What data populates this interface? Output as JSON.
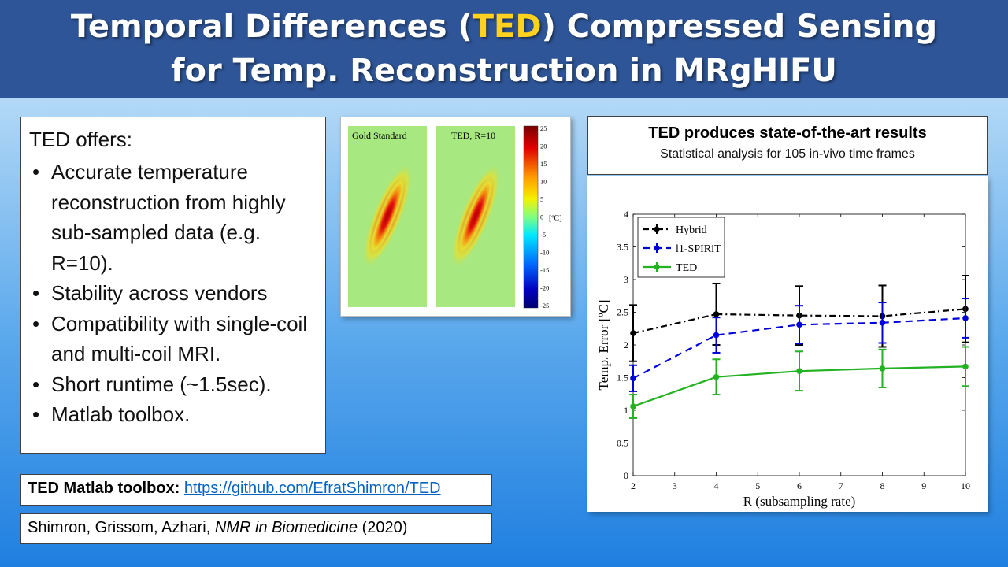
{
  "title": {
    "line1_pre": "Temporal Differences (",
    "line1_hl": "TED",
    "line1_post": ") Compressed Sensing",
    "line2": "for Temp. Reconstruction in MRgHIFU",
    "highlight_color": "#ffd21f",
    "bar_color": "#2e5597"
  },
  "offers": {
    "intro": "TED offers:",
    "items": [
      "Accurate temperature reconstruction from highly sub-sampled data (e.g. R=10).",
      "Stability across vendors",
      "Compatibility with single-coil and multi-coil MRI.",
      "Short runtime (~1.5sec).",
      "Matlab toolbox."
    ]
  },
  "maps": {
    "left_label": "Gold Standard",
    "right_label": "TED, R=10",
    "unit": "[ºC]",
    "colorbar_ticks": [
      "25",
      "20",
      "15",
      "10",
      "5",
      "0",
      "-5",
      "-10",
      "-15",
      "-20",
      "-25"
    ]
  },
  "results": {
    "heading": "TED produces state-of-the-art results",
    "subheading": "Statistical analysis for 105 in-vivo time frames"
  },
  "chart_data": {
    "type": "line",
    "xlabel": "R (subsampling rate)",
    "ylabel": "Temp. Error [ºC]",
    "xlim": [
      2,
      10
    ],
    "ylim": [
      0,
      4
    ],
    "xticks": [
      2,
      3,
      4,
      5,
      6,
      7,
      8,
      9,
      10
    ],
    "yticks": [
      0,
      0.5,
      1,
      1.5,
      2,
      2.5,
      3,
      3.5,
      4
    ],
    "x": [
      2,
      4,
      6,
      8,
      10
    ],
    "legend_position": "top-left",
    "series": [
      {
        "name": "Hybrid",
        "values": [
          2.18,
          2.47,
          2.45,
          2.44,
          2.55
        ],
        "err": [
          0.43,
          0.47,
          0.45,
          0.47,
          0.51
        ],
        "color": "#000000",
        "dash": "8,4,2,4"
      },
      {
        "name": "l1-SPIRiT",
        "values": [
          1.49,
          2.15,
          2.31,
          2.34,
          2.41
        ],
        "err": [
          0.2,
          0.27,
          0.29,
          0.31,
          0.3
        ],
        "color": "#0000dd",
        "dash": "9,6"
      },
      {
        "name": "TED",
        "values": [
          1.06,
          1.51,
          1.6,
          1.64,
          1.67
        ],
        "err": [
          0.18,
          0.27,
          0.3,
          0.29,
          0.3
        ],
        "color": "#22b222",
        "dash": ""
      }
    ]
  },
  "toolbox": {
    "label": "TED Matlab toolbox:",
    "link": "https://github.com/EfratShimron/TED"
  },
  "citation": {
    "authors": "Shimron, Grissom, Azhari, ",
    "journal": "NMR in Biomedicine",
    "year": " (2020)"
  }
}
